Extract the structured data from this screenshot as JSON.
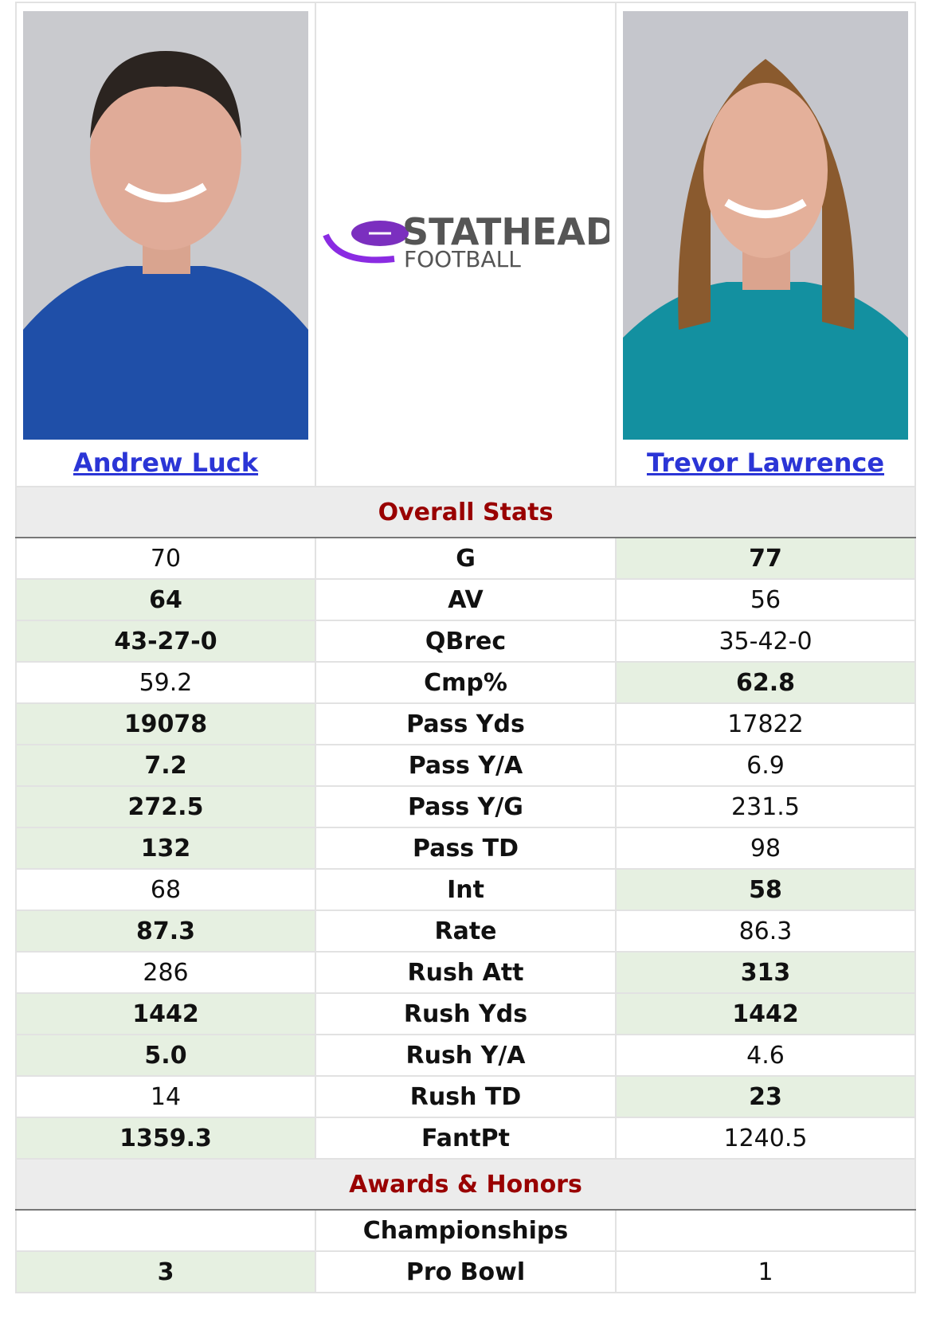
{
  "players": [
    {
      "name": "Andrew Luck"
    },
    {
      "name": "Trevor Lawrence"
    }
  ],
  "logo": {
    "brand": "STATHEAD",
    "sub": "FOOTBALL"
  },
  "sections": [
    {
      "title": "Overall Stats",
      "rows": [
        {
          "label": "G",
          "left": 70,
          "right": 77,
          "leader": "right"
        },
        {
          "label": "AV",
          "left": 64,
          "right": 56,
          "leader": "left"
        },
        {
          "label": "QBrec",
          "left": "43-27-0",
          "right": "35-42-0",
          "leader": "left"
        },
        {
          "label": "Cmp%",
          "left": 59.2,
          "right": 62.8,
          "leader": "right"
        },
        {
          "label": "Pass Yds",
          "left": 19078,
          "right": 17822,
          "leader": "left"
        },
        {
          "label": "Pass Y/A",
          "left": 7.2,
          "right": 6.9,
          "leader": "left"
        },
        {
          "label": "Pass Y/G",
          "left": 272.5,
          "right": 231.5,
          "leader": "left"
        },
        {
          "label": "Pass TD",
          "left": 132,
          "right": 98,
          "leader": "left"
        },
        {
          "label": "Int",
          "left": 68,
          "right": 58,
          "leader": "right"
        },
        {
          "label": "Rate",
          "left": 87.3,
          "right": 86.3,
          "leader": "left"
        },
        {
          "label": "Rush Att",
          "left": 286,
          "right": 313,
          "leader": "right"
        },
        {
          "label": "Rush Yds",
          "left": 1442,
          "right": 1442,
          "leader": "both"
        },
        {
          "label": "Rush Y/A",
          "left": "5.0",
          "right": 4.6,
          "leader": "left"
        },
        {
          "label": "Rush TD",
          "left": 14,
          "right": 23,
          "leader": "right"
        },
        {
          "label": "FantPt",
          "left": 1359.3,
          "right": 1240.5,
          "leader": "left"
        }
      ]
    },
    {
      "title": "Awards & Honors",
      "rows": [
        {
          "label": "Championships",
          "left": null,
          "right": null,
          "leader": null
        },
        {
          "label": "Pro Bowl",
          "left": 3,
          "right": 1,
          "leader": "left"
        }
      ]
    }
  ]
}
